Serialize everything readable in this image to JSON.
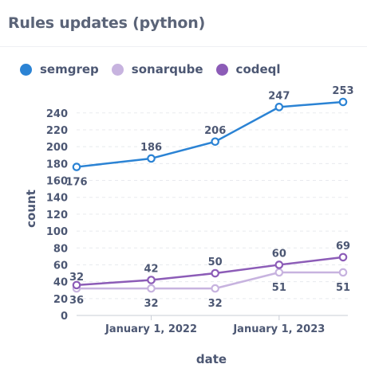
{
  "title": "Rules updates (python)",
  "chart_data": {
    "type": "line",
    "title": "Rules updates (python)",
    "xlabel": "date",
    "ylabel": "count",
    "x": [
      "2021-06",
      "2022-01",
      "2022-07",
      "2023-01",
      "2023-07"
    ],
    "x_tick_labels": [
      "January 1, 2022",
      "January 1, 2023"
    ],
    "x_tick_dates": [
      "2022-01",
      "2023-01"
    ],
    "y_ticks": [
      0,
      20,
      40,
      60,
      80,
      100,
      120,
      140,
      160,
      180,
      200,
      220,
      240
    ],
    "ylim": [
      0,
      253
    ],
    "grid": true,
    "legend_position": "top-left",
    "series": [
      {
        "name": "semgrep",
        "color": "#2b83d4",
        "values": [
          176,
          186,
          206,
          247,
          253
        ]
      },
      {
        "name": "sonarqube",
        "color": "#c7b3df",
        "values": [
          32,
          32,
          32,
          51,
          51
        ]
      },
      {
        "name": "codeql",
        "color": "#8c5cb7",
        "values": [
          36,
          42,
          50,
          60,
          69
        ]
      }
    ]
  }
}
